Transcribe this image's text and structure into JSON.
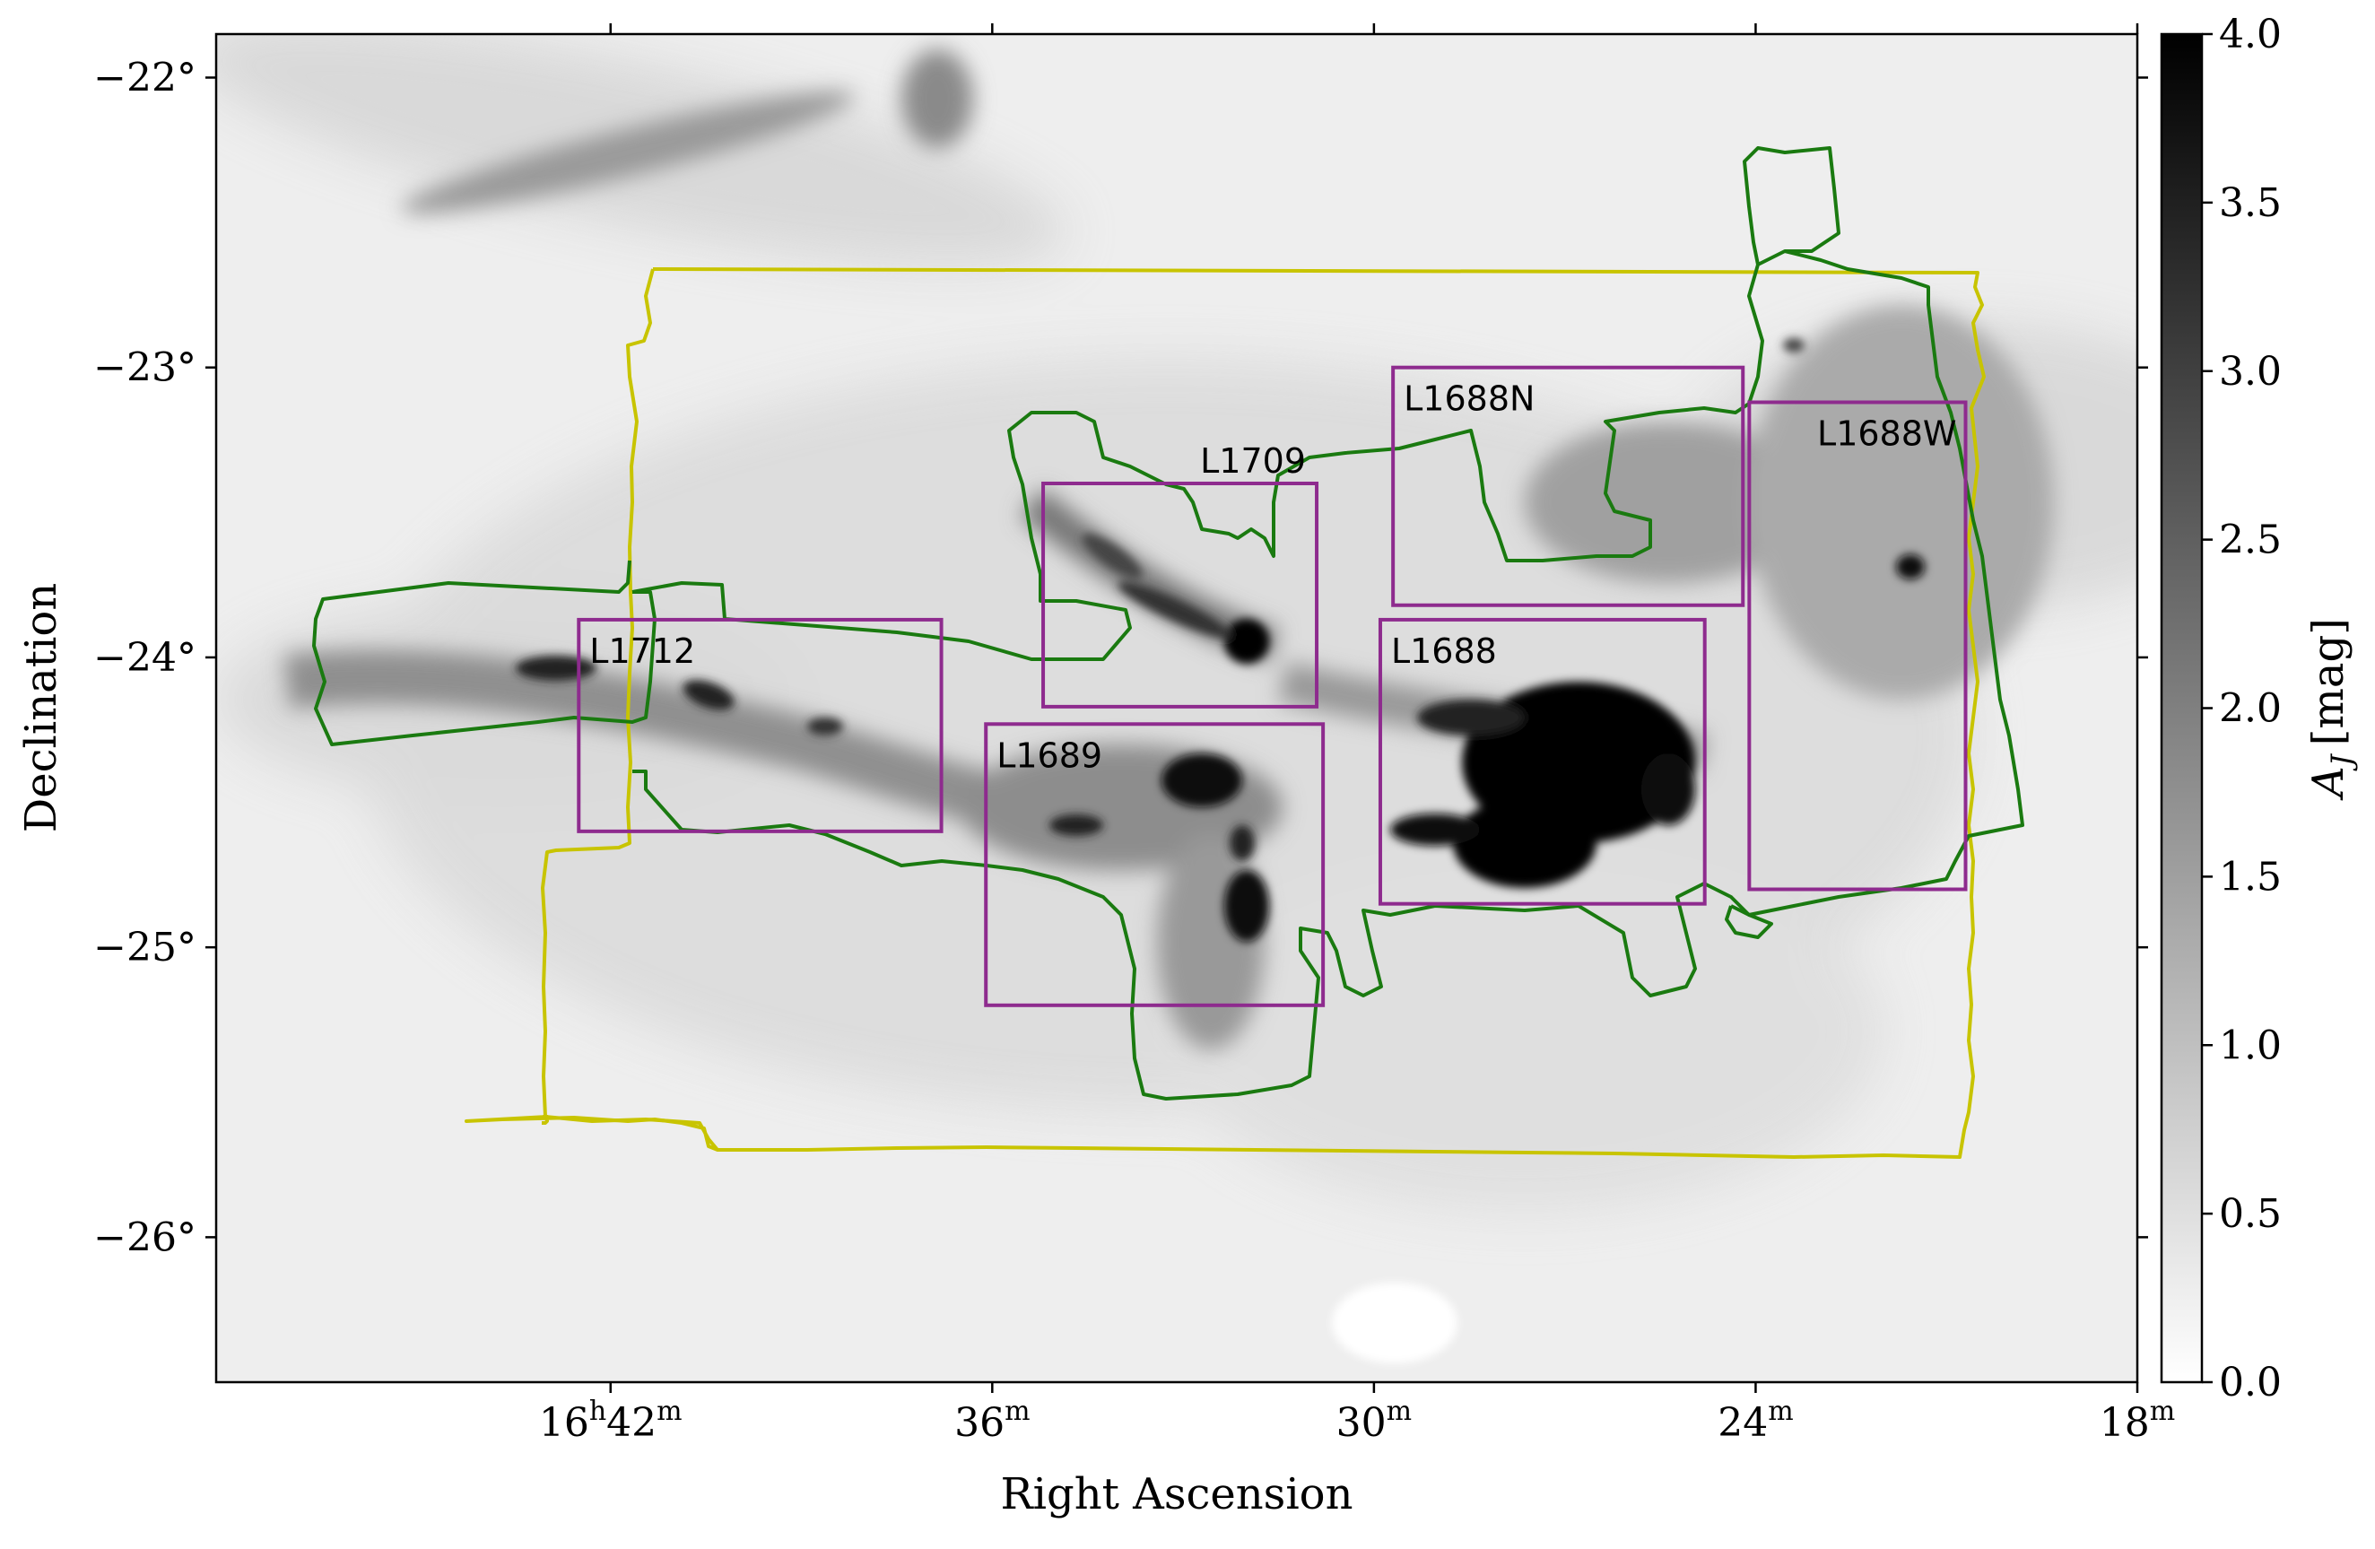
{
  "chart_data": {
    "type": "heatmap",
    "description_of_map": "extinction map",
    "x_axis": {
      "label": "Right Ascension",
      "units": "hours-minutes",
      "range": [
        "16h48.2m",
        "16h18.0m"
      ],
      "ticks": [
        {
          "value_min": 42,
          "label_main": "16",
          "label_sup_h": "h",
          "label_min": "42",
          "label_sup_m": "m"
        },
        {
          "value_min": 36,
          "label_main": "36",
          "label_sup_m": "m"
        },
        {
          "value_min": 30,
          "label_main": "30",
          "label_sup_m": "m"
        },
        {
          "value_min": 24,
          "label_main": "24",
          "label_sup_m": "m"
        },
        {
          "value_min": 18,
          "label_main": "18",
          "label_sup_m": "m"
        }
      ]
    },
    "y_axis": {
      "label": "Declination",
      "units": "degrees",
      "range": [
        -26.5,
        -21.85
      ],
      "ticks": [
        {
          "value": -22,
          "label": "−22°"
        },
        {
          "value": -23,
          "label": "−23°"
        },
        {
          "value": -24,
          "label": "−24°"
        },
        {
          "value": -25,
          "label": "−25°"
        },
        {
          "value": -26,
          "label": "−26°"
        }
      ]
    },
    "colorbar": {
      "label": "A",
      "label_sub": "J",
      "label_unit": "[mag]",
      "range": [
        0.0,
        4.0
      ],
      "colormap": "gray_r",
      "ticks": [
        "0.0",
        "0.5",
        "1.0",
        "1.5",
        "2.0",
        "2.5",
        "3.0",
        "3.5",
        "4.0"
      ]
    },
    "regions": [
      {
        "name": "L1712",
        "ra_min": [
          16.0,
          42.5,
          36.8
        ],
        "dec": [
          -23.87,
          -24.6
        ]
      },
      {
        "name": "L1709",
        "ra_min": [
          35.2,
          30.9
        ],
        "dec": [
          -23.4,
          -24.17
        ]
      },
      {
        "name": "L1689",
        "ra_min": [
          36.1,
          30.8
        ],
        "dec": [
          -24.23,
          -25.2
        ]
      },
      {
        "name": "L1688N",
        "ra_min": [
          29.7,
          24.2
        ],
        "dec": [
          -23.0,
          -23.82
        ]
      },
      {
        "name": "L1688",
        "ra_min": [
          29.9,
          24.8
        ],
        "dec": [
          -23.87,
          -24.85
        ]
      },
      {
        "name": "L1688W",
        "ra_min": [
          24.1,
          20.7
        ],
        "dec": [
          -23.12,
          -24.8
        ]
      }
    ],
    "contours": [
      {
        "name": "yellow survey footprint",
        "color": "#c8c400"
      },
      {
        "name": "green survey footprint",
        "color": "#1a7a10"
      }
    ]
  },
  "colors": {
    "region_box": "#8e2b8e",
    "region_text": "#8e2b8e",
    "yellow_contour": "#c8c400",
    "green_contour": "#1a7a10",
    "axis": "#000000"
  }
}
